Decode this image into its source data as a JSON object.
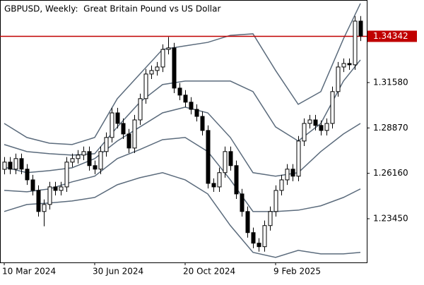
{
  "chart_data": {
    "type": "candlestick",
    "title": "GBPUSD, Weekly:  Great Britain Pound vs US Dollar",
    "categories": [
      "10 Mar 2024",
      null,
      null,
      null,
      null,
      null,
      null,
      null,
      null,
      null,
      null,
      null,
      null,
      null,
      null,
      null,
      "30 Jun 2024",
      null,
      null,
      null,
      null,
      null,
      null,
      null,
      null,
      null,
      null,
      null,
      null,
      null,
      null,
      null,
      "20 Oct 2024",
      null,
      null,
      null,
      null,
      null,
      null,
      null,
      null,
      null,
      null,
      null,
      null,
      null,
      null,
      null,
      "9 Feb 2025",
      null,
      null,
      null,
      null,
      null,
      null,
      null,
      null,
      null,
      null,
      null,
      null,
      null,
      null,
      null
    ],
    "open": [
      1.264,
      1.2683,
      1.2641,
      1.2704,
      1.2641,
      1.2577,
      1.2514,
      1.2388,
      1.243,
      1.2535,
      1.2514,
      1.2535,
      1.2683,
      1.2704,
      1.2725,
      1.2746,
      1.2662,
      1.2641,
      1.2746,
      1.283,
      1.2977,
      1.2914,
      1.2851,
      1.2767,
      1.2935,
      1.3062,
      1.3209,
      1.323,
      1.3251,
      1.3356,
      1.3365,
      1.3125,
      1.3083,
      1.3041,
      1.2998,
      1.2956,
      1.2872,
      1.2556,
      1.2535,
      1.262,
      1.2746,
      1.2662,
      1.2493,
      1.2388,
      1.2262,
      1.2199,
      1.2178,
      1.2304,
      1.2388,
      1.2514,
      1.2577,
      1.2641,
      1.2599,
      1.2809,
      1.2914,
      1.2935,
      1.2902,
      1.2872,
      1.2914,
      1.3104,
      1.3251,
      1.3272,
      1.3264,
      1.3525
    ],
    "high": [
      1.2713,
      1.2713,
      1.2734,
      1.2734,
      1.2671,
      1.2607,
      1.2544,
      1.246,
      1.2565,
      1.2565,
      1.2565,
      1.2713,
      1.2734,
      1.2755,
      1.2776,
      1.2776,
      1.2692,
      1.2776,
      1.286,
      1.3007,
      1.3007,
      1.2944,
      1.2881,
      1.2965,
      1.3092,
      1.3239,
      1.326,
      1.3281,
      1.3386,
      1.343,
      1.3395,
      1.3155,
      1.3113,
      1.3071,
      1.3028,
      1.2986,
      1.2902,
      1.2586,
      1.265,
      1.2776,
      1.2776,
      1.2692,
      1.2523,
      1.2418,
      1.2292,
      1.2229,
      1.2334,
      1.2418,
      1.2544,
      1.2607,
      1.2671,
      1.2671,
      1.2839,
      1.2944,
      1.2965,
      1.2965,
      1.2932,
      1.2944,
      1.3134,
      1.3281,
      1.3302,
      1.3302,
      1.3555,
      1.3555
    ],
    "low": [
      1.261,
      1.2611,
      1.2611,
      1.2611,
      1.2547,
      1.2484,
      1.2358,
      1.23,
      1.24,
      1.2484,
      1.2484,
      1.2505,
      1.2653,
      1.2674,
      1.2695,
      1.2632,
      1.2611,
      1.2611,
      1.2716,
      1.28,
      1.2884,
      1.2821,
      1.2737,
      1.2737,
      1.2905,
      1.3032,
      1.3179,
      1.32,
      1.3221,
      1.3326,
      1.3095,
      1.3053,
      1.3011,
      1.2968,
      1.2926,
      1.2842,
      1.2526,
      1.2505,
      1.2505,
      1.259,
      1.2632,
      1.2463,
      1.2358,
      1.2232,
      1.2169,
      1.2148,
      1.2148,
      1.2274,
      1.2358,
      1.2484,
      1.2547,
      1.2569,
      1.2569,
      1.2779,
      1.2884,
      1.2872,
      1.2842,
      1.2842,
      1.2884,
      1.3074,
      1.3221,
      1.3234,
      1.3234,
      1.3406
    ],
    "close": [
      1.2683,
      1.2641,
      1.2704,
      1.2641,
      1.2577,
      1.2514,
      1.2388,
      1.243,
      1.2535,
      1.2514,
      1.2535,
      1.2683,
      1.2704,
      1.2725,
      1.2746,
      1.2662,
      1.2641,
      1.2746,
      1.283,
      1.2977,
      1.2914,
      1.2851,
      1.2767,
      1.2935,
      1.3062,
      1.3209,
      1.323,
      1.3251,
      1.3356,
      1.3365,
      1.3125,
      1.3083,
      1.3041,
      1.2998,
      1.2956,
      1.2872,
      1.2556,
      1.2535,
      1.262,
      1.2746,
      1.2662,
      1.2493,
      1.2388,
      1.2262,
      1.2199,
      1.2178,
      1.2304,
      1.2388,
      1.2514,
      1.2577,
      1.2641,
      1.2599,
      1.2809,
      1.2914,
      1.2935,
      1.2902,
      1.2872,
      1.2914,
      1.3104,
      1.3251,
      1.3272,
      1.3264,
      1.3525,
      1.3436
    ],
    "up_color": "#ffffff",
    "down_color": "#000000",
    "band_x": [
      0,
      4,
      8,
      12,
      16,
      20,
      24,
      28,
      32,
      36,
      40,
      44,
      48,
      52,
      56,
      60,
      63
    ],
    "bands": [
      {
        "color": "#5b6b7c",
        "values": [
          1.2914,
          1.283,
          1.2796,
          1.2788,
          1.283,
          1.3062,
          1.3209,
          1.3356,
          1.3377,
          1.3398,
          1.344,
          1.3449,
          1.323,
          1.3028,
          1.3104,
          1.3419,
          1.363
        ]
      },
      {
        "color": "#5b6b7c",
        "values": [
          1.2788,
          1.2746,
          1.2733,
          1.2725,
          1.2733,
          1.2893,
          1.3041,
          1.3146,
          1.3167,
          1.3167,
          1.3167,
          1.3104,
          1.2893,
          1.2809,
          1.2914,
          1.3167,
          1.3293
        ]
      },
      {
        "color": "#5b6b7c",
        "values": [
          1.2653,
          1.262,
          1.2632,
          1.2649,
          1.2704,
          1.2809,
          1.2893,
          1.2977,
          1.3011,
          1.2977,
          1.283,
          1.262,
          1.2599,
          1.262,
          1.2746,
          1.2851,
          1.2914
        ]
      },
      {
        "color": "#5b6b7c",
        "values": [
          1.2514,
          1.2506,
          1.2523,
          1.2565,
          1.2599,
          1.2704,
          1.2758,
          1.2817,
          1.283,
          1.2746,
          1.2577,
          1.2388,
          1.2388,
          1.2396,
          1.2422,
          1.2472,
          1.2523
        ]
      },
      {
        "color": "#5b6b7c",
        "values": [
          1.2388,
          1.243,
          1.2439,
          1.2451,
          1.2472,
          1.2548,
          1.259,
          1.262,
          1.2577,
          1.2493,
          1.2304,
          1.2144,
          1.2114,
          1.2156,
          1.2135,
          1.2135,
          1.2144
        ]
      }
    ],
    "price_line": 1.34342,
    "price_line_color": "#c00000",
    "ylim": [
      1.2084,
      1.3651
    ],
    "yticks": [
      "1.31580",
      "1.28870",
      "1.26160",
      "1.23450"
    ]
  }
}
